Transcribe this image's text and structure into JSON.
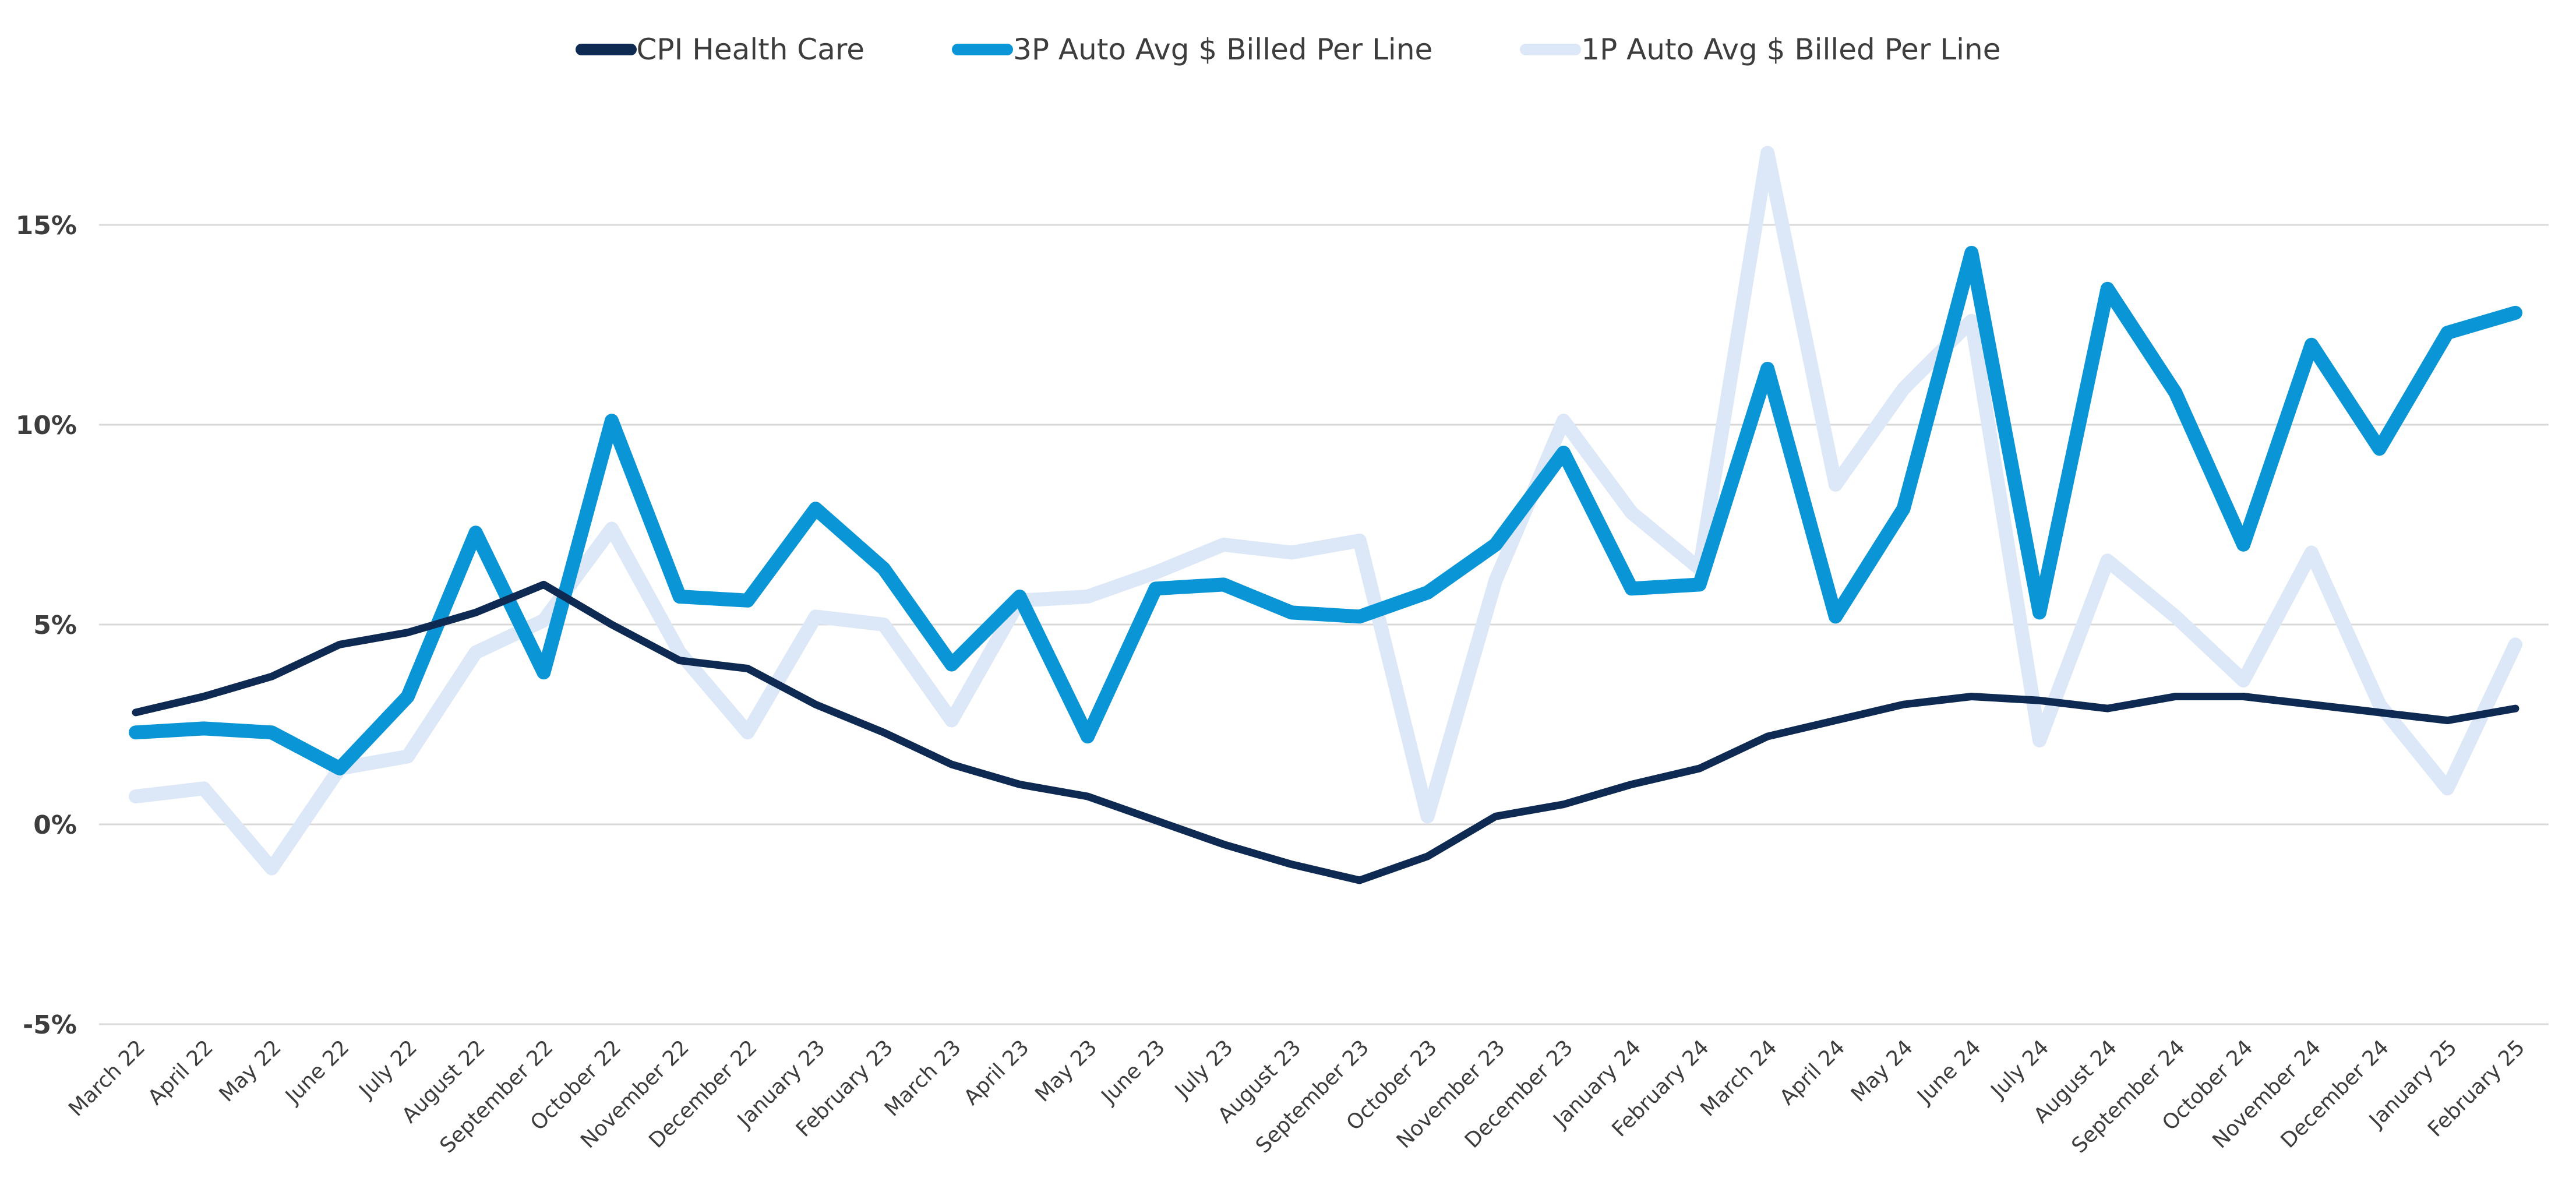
{
  "chart_data": {
    "type": "line",
    "title": "",
    "xlabel": "",
    "ylabel": "",
    "ylim": [
      -5,
      17.5
    ],
    "yticks": [
      {
        "value": -5,
        "label": "-5%"
      },
      {
        "value": 0,
        "label": "0%"
      },
      {
        "value": 5,
        "label": "5%"
      },
      {
        "value": 10,
        "label": "10%"
      },
      {
        "value": 15,
        "label": "15%"
      }
    ],
    "grid": "horizontal",
    "legend_position": "top-center",
    "categories": [
      "March 22",
      "April 22",
      "May 22",
      "June 22",
      "July 22",
      "August 22",
      "September 22",
      "October 22",
      "November 22",
      "December 22",
      "January 23",
      "February 23",
      "March 23",
      "April 23",
      "May 23",
      "June 23",
      "July 23",
      "August 23",
      "September 23",
      "October 23",
      "November 23",
      "December 23",
      "January 24",
      "February 24",
      "March 24",
      "April 24",
      "May 24",
      "June 24",
      "July 24",
      "August 24",
      "September 24",
      "October 24",
      "November 24",
      "December 24",
      "January 25",
      "February 25"
    ],
    "series": [
      {
        "name": "CPI Health Care",
        "color": "#0e2a52",
        "values": [
          2.8,
          3.2,
          3.7,
          4.5,
          4.8,
          5.3,
          6.0,
          5.0,
          4.1,
          3.9,
          3.0,
          2.3,
          1.5,
          1.0,
          0.7,
          0.1,
          -0.5,
          -1.0,
          -1.4,
          -0.8,
          0.2,
          0.5,
          1.0,
          1.4,
          2.2,
          2.6,
          3.0,
          3.2,
          3.1,
          2.9,
          3.2,
          3.2,
          3.0,
          2.8,
          2.6,
          2.9
        ]
      },
      {
        "name": "3P Auto Avg $ Billed Per Line",
        "color": "#0a96d6",
        "values": [
          2.3,
          2.4,
          2.3,
          1.4,
          3.2,
          7.3,
          3.8,
          10.1,
          5.7,
          5.6,
          7.9,
          6.4,
          4.0,
          5.7,
          2.2,
          5.9,
          6.0,
          5.3,
          5.2,
          5.8,
          7.0,
          9.3,
          5.9,
          6.0,
          11.4,
          5.2,
          7.9,
          14.3,
          5.3,
          13.4,
          10.8,
          7.0,
          12.0,
          9.4,
          12.3,
          12.8
        ]
      },
      {
        "name": "1P Auto Avg $ Billed Per Line",
        "color": "#dce7f8",
        "values": [
          0.7,
          0.9,
          -1.1,
          1.4,
          1.7,
          4.3,
          5.1,
          7.4,
          4.3,
          2.3,
          5.2,
          5.0,
          2.6,
          5.6,
          5.7,
          6.3,
          7.0,
          6.8,
          7.1,
          0.2,
          6.1,
          10.1,
          7.8,
          6.4,
          16.8,
          8.5,
          10.9,
          12.6,
          2.1,
          6.6,
          5.2,
          3.6,
          6.8,
          3.0,
          0.9,
          4.5
        ]
      }
    ]
  }
}
